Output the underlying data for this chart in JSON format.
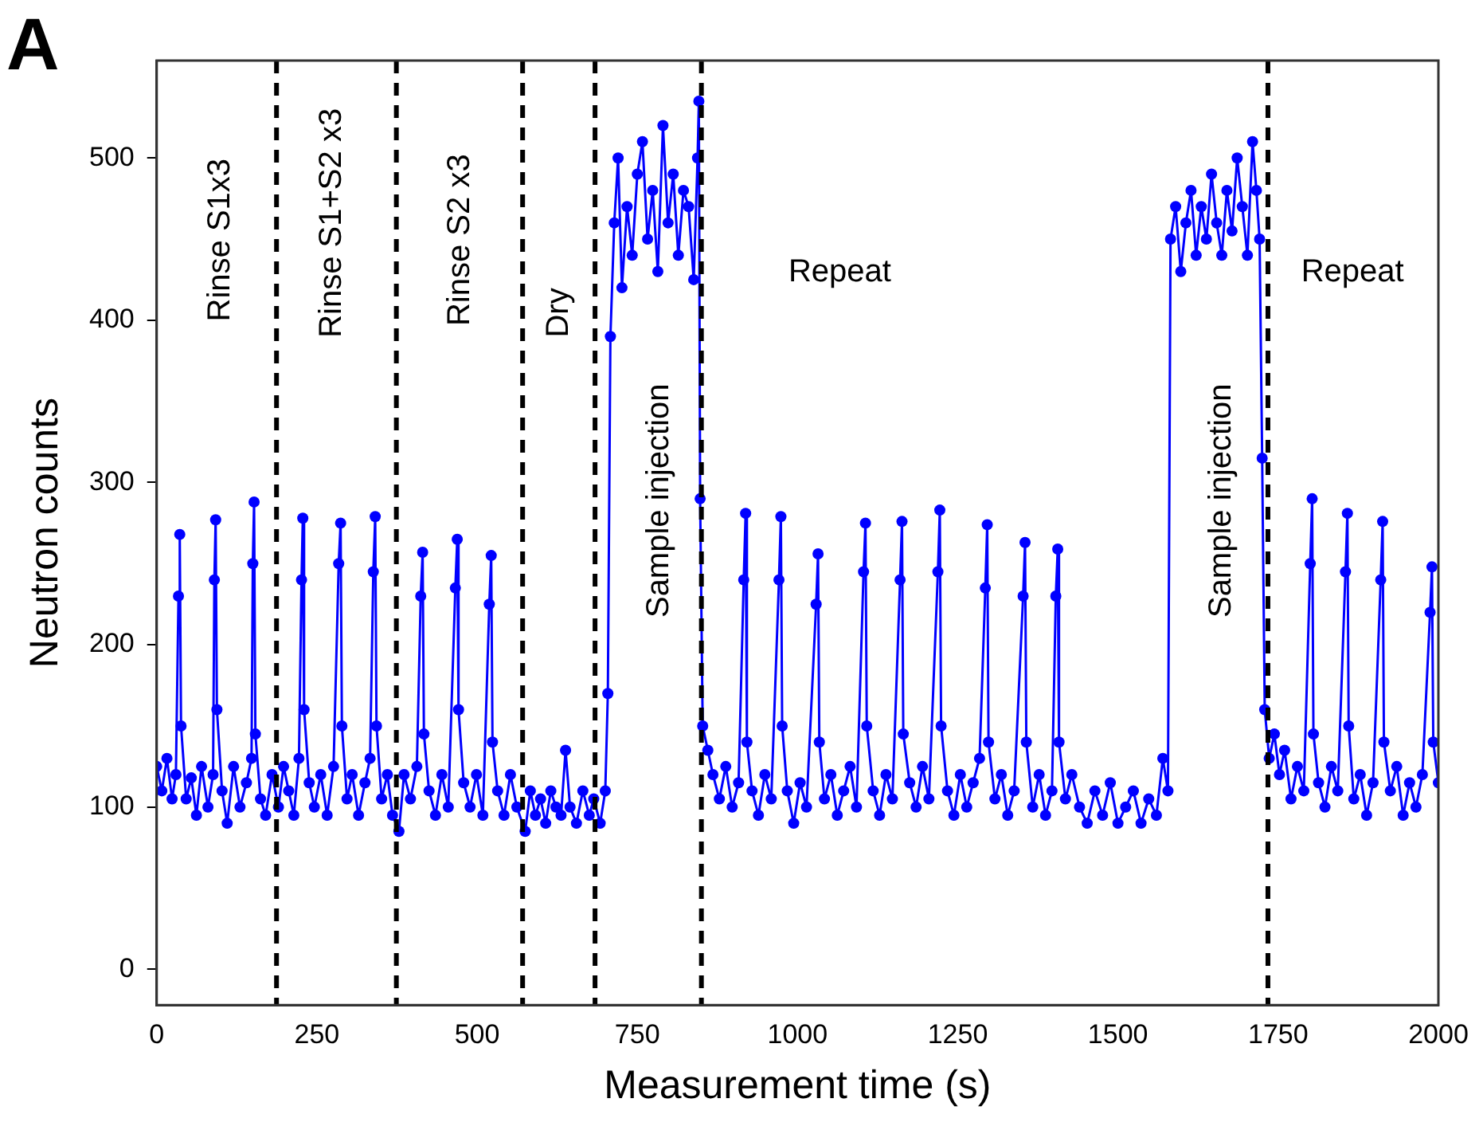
{
  "chart_data": {
    "type": "line",
    "xlabel": "Measurement time (s)",
    "ylabel": "Neutron counts",
    "xlim": [
      0,
      2000
    ],
    "xticks": [
      0,
      250,
      500,
      750,
      1000,
      1250,
      1500,
      1750,
      2000
    ],
    "ylim": [
      -22,
      560
    ],
    "yticks": [
      0,
      100,
      200,
      300,
      400,
      500
    ],
    "grid": false,
    "legend": false,
    "marker": "circle",
    "line_style": "solid",
    "series": [
      {
        "color": "#0000ff",
        "x": [
          0,
          8,
          16,
          24,
          30,
          34,
          36,
          38,
          46,
          54,
          62,
          70,
          80,
          88,
          90,
          92,
          94,
          102,
          110,
          120,
          130,
          140,
          148,
          150,
          152,
          154,
          162,
          170,
          180,
          190,
          198,
          206,
          214,
          222,
          226,
          228,
          230,
          238,
          246,
          256,
          266,
          276,
          284,
          287,
          289,
          297,
          305,
          315,
          325,
          333,
          338,
          341,
          343,
          351,
          360,
          368,
          378,
          386,
          396,
          406,
          412,
          415,
          417,
          425,
          435,
          445,
          455,
          466,
          469,
          471,
          479,
          489,
          499,
          509,
          519,
          522,
          524,
          532,
          542,
          552,
          562,
          575,
          583,
          591,
          599,
          607,
          615,
          623,
          631,
          638,
          645,
          655,
          665,
          675,
          682,
          692,
          700,
          704,
          708,
          714,
          720,
          726,
          734,
          742,
          750,
          758,
          766,
          774,
          782,
          790,
          798,
          806,
          814,
          822,
          830,
          838,
          844,
          846,
          848,
          852,
          860,
          868,
          878,
          888,
          898,
          908,
          916,
          919,
          921,
          929,
          939,
          949,
          959,
          971,
          974,
          976,
          984,
          994,
          1004,
          1014,
          1029,
          1032,
          1034,
          1042,
          1052,
          1062,
          1072,
          1082,
          1092,
          1103,
          1106,
          1108,
          1118,
          1128,
          1138,
          1148,
          1160,
          1163,
          1165,
          1175,
          1185,
          1195,
          1205,
          1219,
          1222,
          1224,
          1234,
          1244,
          1254,
          1264,
          1274,
          1284,
          1293,
          1296,
          1298,
          1308,
          1318,
          1328,
          1338,
          1352,
          1355,
          1357,
          1367,
          1377,
          1387,
          1397,
          1403,
          1406,
          1408,
          1418,
          1428,
          1440,
          1452,
          1464,
          1476,
          1488,
          1500,
          1512,
          1524,
          1536,
          1548,
          1560,
          1570,
          1578,
          1582,
          1590,
          1598,
          1606,
          1614,
          1622,
          1630,
          1638,
          1646,
          1654,
          1662,
          1670,
          1678,
          1686,
          1694,
          1702,
          1710,
          1716,
          1721,
          1725,
          1729,
          1736,
          1744,
          1752,
          1760,
          1770,
          1780,
          1790,
          1800,
          1803,
          1805,
          1813,
          1823,
          1833,
          1843,
          1855,
          1858,
          1860,
          1868,
          1878,
          1888,
          1898,
          1910,
          1913,
          1915,
          1925,
          1935,
          1945,
          1955,
          1965,
          1975,
          1987,
          1990,
          1992,
          2000
        ],
        "values": [
          125,
          110,
          130,
          105,
          120,
          230,
          268,
          150,
          105,
          118,
          95,
          125,
          100,
          120,
          240,
          277,
          160,
          110,
          90,
          125,
          100,
          115,
          130,
          250,
          288,
          145,
          105,
          95,
          120,
          100,
          125,
          110,
          95,
          130,
          240,
          278,
          160,
          115,
          100,
          120,
          95,
          125,
          250,
          275,
          150,
          105,
          120,
          95,
          115,
          130,
          245,
          279,
          150,
          105,
          120,
          95,
          85,
          120,
          105,
          125,
          230,
          257,
          145,
          110,
          95,
          120,
          100,
          235,
          265,
          160,
          115,
          100,
          120,
          95,
          225,
          255,
          140,
          110,
          95,
          120,
          100,
          85,
          110,
          95,
          105,
          90,
          110,
          100,
          95,
          135,
          100,
          90,
          110,
          95,
          105,
          90,
          110,
          170,
          390,
          460,
          500,
          420,
          470,
          440,
          490,
          510,
          450,
          480,
          430,
          520,
          460,
          490,
          440,
          480,
          470,
          425,
          500,
          535,
          290,
          150,
          135,
          120,
          105,
          125,
          100,
          115,
          240,
          281,
          140,
          110,
          95,
          120,
          105,
          240,
          279,
          150,
          110,
          90,
          115,
          100,
          225,
          256,
          140,
          105,
          120,
          95,
          110,
          125,
          100,
          245,
          275,
          150,
          110,
          95,
          120,
          105,
          240,
          276,
          145,
          115,
          100,
          125,
          105,
          245,
          283,
          150,
          110,
          95,
          120,
          100,
          115,
          130,
          235,
          274,
          140,
          105,
          120,
          95,
          110,
          230,
          263,
          140,
          100,
          120,
          95,
          110,
          230,
          259,
          140,
          105,
          120,
          100,
          90,
          110,
          95,
          115,
          90,
          100,
          110,
          90,
          105,
          95,
          130,
          110,
          450,
          470,
          430,
          460,
          480,
          440,
          470,
          450,
          490,
          460,
          440,
          480,
          455,
          500,
          470,
          440,
          510,
          480,
          450,
          315,
          160,
          130,
          145,
          120,
          135,
          105,
          125,
          110,
          250,
          290,
          145,
          115,
          100,
          125,
          110,
          245,
          281,
          150,
          105,
          120,
          95,
          115,
          240,
          276,
          140,
          110,
          125,
          95,
          115,
          100,
          120,
          220,
          248,
          140,
          115
        ]
      }
    ],
    "ref_lines": [
      {
        "axis": "x",
        "value": 187,
        "color": "#000000",
        "line_style": "dashed"
      },
      {
        "axis": "x",
        "value": 374,
        "color": "#000000",
        "line_style": "dashed"
      },
      {
        "axis": "x",
        "value": 571,
        "color": "#000000",
        "line_style": "dashed"
      },
      {
        "axis": "x",
        "value": 684,
        "color": "#000000",
        "line_style": "dashed"
      },
      {
        "axis": "x",
        "value": 850,
        "color": "#000000",
        "line_style": "dashed"
      },
      {
        "axis": "x",
        "value": 1734,
        "color": "#000000",
        "line_style": "dashed"
      }
    ],
    "annotations": [
      "A",
      "Rinse S1x3",
      "Rinse S1+S2 x3",
      "Rinse S2 x3",
      "Dry",
      "Sample injection",
      "Repeat",
      "Sample injection",
      "Repeat"
    ]
  }
}
